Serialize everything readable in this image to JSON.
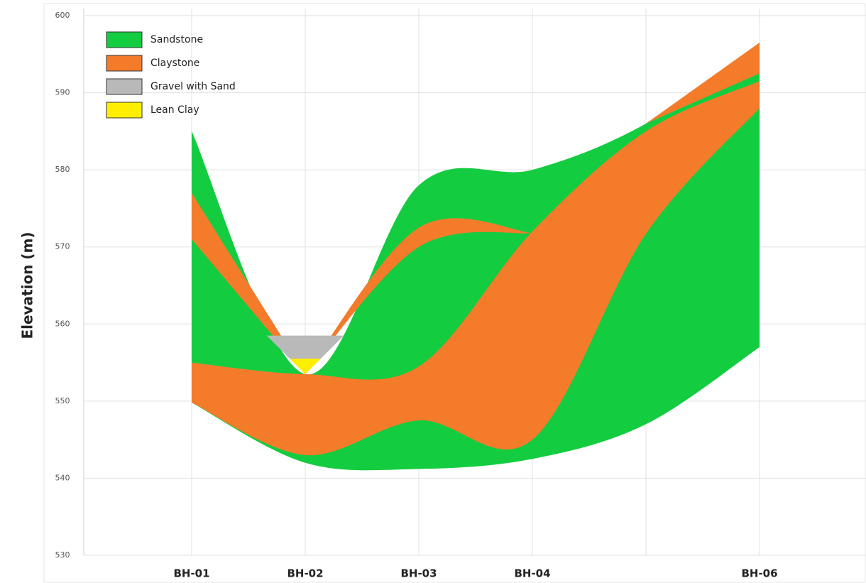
{
  "chart_data": {
    "type": "cross-section",
    "y_label": "Elevation (m)",
    "categories": [
      "BH-01",
      "BH-02",
      "BH-03",
      "BH-04",
      null,
      "BH-06"
    ],
    "ylim": [
      530,
      600
    ],
    "yticks": [
      530,
      540,
      550,
      560,
      570,
      580,
      590,
      600
    ],
    "grid": true,
    "legend": "top-left",
    "series": [
      {
        "name": "Sandstone",
        "color": "#14cc40",
        "bands": [
          {
            "top": [
              585,
              553.5,
              578,
              580,
              586,
              596.5
            ],
            "bottom": [
              549.8,
              542,
              541.2,
              542.5,
              547,
              557
            ]
          }
        ]
      },
      {
        "name": "Claystone",
        "color": "#f47b2a",
        "bands": [
          {
            "top": [
              555,
              553.5,
              554.5,
              572,
              585,
              591.5
            ],
            "bottom": [
              549.8,
              543,
              547.5,
              545,
              571.7,
              588
            ]
          },
          {
            "top": [
              577,
              553.5,
              null,
              null,
              null,
              null
            ],
            "bottom": [
              571,
              553.5,
              null,
              null,
              null,
              null
            ]
          },
          {
            "top": [
              null,
              553.5,
              572.5,
              571.8,
              null,
              null
            ],
            "bottom": [
              null,
              553.5,
              570,
              571.8,
              null,
              null
            ]
          },
          {
            "top": [
              null,
              null,
              null,
              null,
              586,
              596.5
            ],
            "bottom": [
              null,
              null,
              null,
              null,
              586,
              592.5
            ]
          }
        ]
      },
      {
        "name": "Gravel with Sand",
        "color": "#b9b9b9",
        "bands": [
          {
            "top": [
              null,
              558.5,
              null,
              null,
              null,
              null
            ],
            "bottom": [
              null,
              553.5,
              null,
              null,
              null,
              null
            ]
          }
        ]
      },
      {
        "name": "Lean Clay",
        "color": "#ffee00",
        "bands": [
          {
            "top": [
              null,
              555.5,
              null,
              null,
              null,
              null
            ],
            "bottom": [
              null,
              553.5,
              null,
              null,
              null,
              null
            ]
          }
        ]
      }
    ]
  }
}
